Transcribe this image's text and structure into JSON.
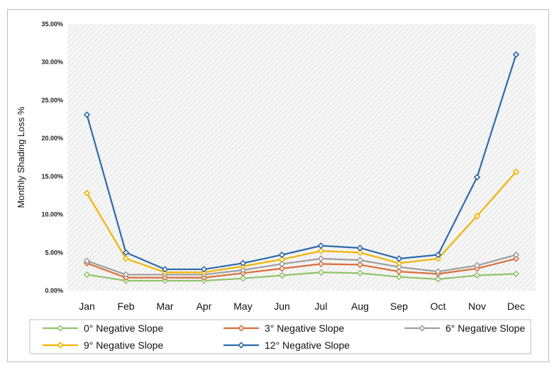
{
  "chart_data": {
    "type": "line",
    "title": "",
    "xlabel": "",
    "ylabel": "Monthly Shading Loss %",
    "categories": [
      "Jan",
      "Feb",
      "Mar",
      "Apr",
      "May",
      "Jun",
      "Jul",
      "Aug",
      "Sep",
      "Oct",
      "Nov",
      "Dec"
    ],
    "ylim": [
      0,
      0.35
    ],
    "yticks": [
      "0.00%",
      "5.00%",
      "10.00%",
      "15.00%",
      "20.00%",
      "25.00%",
      "30.00%",
      "35.00%"
    ],
    "grid": false,
    "legend_position": "bottom",
    "series": [
      {
        "name": "0° Negative Slope",
        "color": "#8fc46a",
        "values": [
          0.021,
          0.013,
          0.013,
          0.013,
          0.016,
          0.02,
          0.024,
          0.023,
          0.018,
          0.015,
          0.02,
          0.022
        ]
      },
      {
        "name": "3° Negative Slope",
        "color": "#d86f3a",
        "values": [
          0.036,
          0.017,
          0.017,
          0.017,
          0.023,
          0.029,
          0.035,
          0.034,
          0.025,
          0.022,
          0.029,
          0.042
        ]
      },
      {
        "name": "6° Negative Slope",
        "color": "#9e9e9e",
        "values": [
          0.039,
          0.021,
          0.021,
          0.021,
          0.027,
          0.035,
          0.042,
          0.04,
          0.031,
          0.025,
          0.033,
          0.047
        ]
      },
      {
        "name": "9° Negative Slope",
        "color": "#f0b400",
        "values": [
          0.128,
          0.042,
          0.024,
          0.024,
          0.032,
          0.041,
          0.052,
          0.05,
          0.036,
          0.042,
          0.098,
          0.156
        ]
      },
      {
        "name": "12° Negative Slope",
        "color": "#2e6aa8",
        "values": [
          0.231,
          0.05,
          0.028,
          0.028,
          0.036,
          0.047,
          0.059,
          0.056,
          0.042,
          0.047,
          0.149,
          0.31
        ]
      }
    ]
  }
}
